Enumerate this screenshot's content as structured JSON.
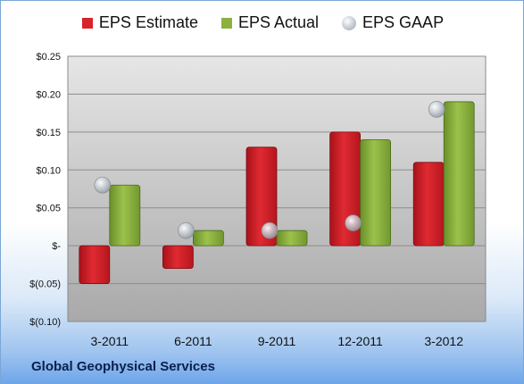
{
  "chart_data": {
    "type": "bar",
    "categories": [
      "3-2011",
      "6-2011",
      "9-2011",
      "12-2011",
      "3-2012"
    ],
    "series": [
      {
        "name": "EPS Estimate",
        "values": [
          -0.05,
          -0.03,
          0.13,
          0.15,
          0.11
        ],
        "color": "#d9232b"
      },
      {
        "name": "EPS Actual",
        "values": [
          0.08,
          0.02,
          0.02,
          0.14,
          0.19
        ],
        "color": "#8bb13f"
      },
      {
        "name": "EPS GAAP",
        "values": [
          0.08,
          0.02,
          0.02,
          0.03,
          0.18
        ],
        "marker": "circle",
        "color": "#b7bec6"
      }
    ],
    "ylim": [
      -0.1,
      0.25
    ],
    "yticks": [
      0.25,
      0.2,
      0.15,
      0.1,
      0.05,
      0.0,
      -0.05,
      -0.1
    ],
    "ytick_labels": [
      "$0.25",
      "$0.20",
      "$0.15",
      "$0.10",
      "$0.05",
      "$-",
      "$(0.05)",
      "$(0.10)"
    ],
    "grid": true,
    "legend_position": "top"
  },
  "footer": {
    "company": "Global Geophysical Services"
  }
}
